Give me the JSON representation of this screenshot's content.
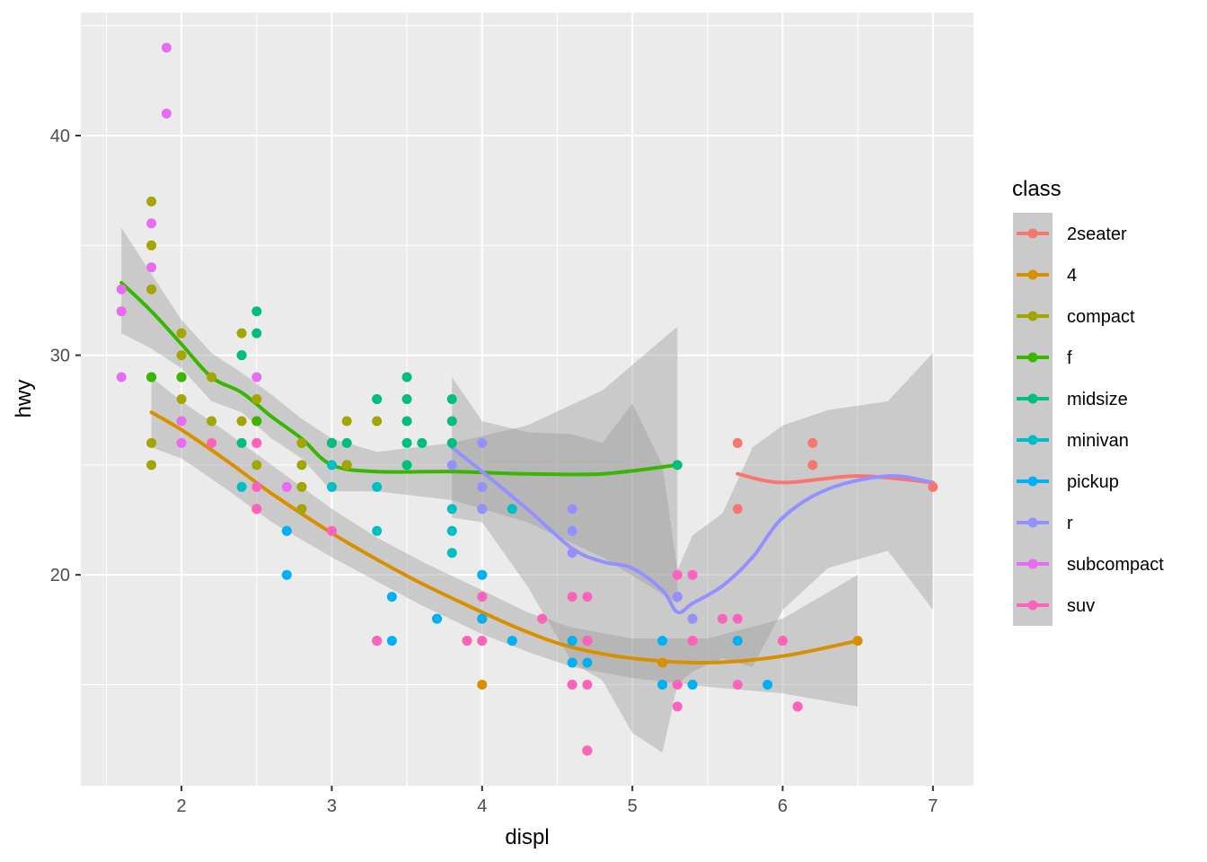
{
  "chart_data": {
    "type": "scatter",
    "xlabel": "displ",
    "ylabel": "hwy",
    "xlim": [
      1.33,
      7.27
    ],
    "ylim": [
      10.4,
      45.6
    ],
    "x_ticks": [
      2,
      3,
      4,
      5,
      6,
      7
    ],
    "y_ticks": [
      20,
      30,
      40
    ],
    "grid": true,
    "legend": {
      "title": "class",
      "placement": "right"
    },
    "smooth": {
      "method": "loess",
      "confidence_band": true,
      "band_color": "#999999"
    },
    "series": [
      {
        "name": "2seater",
        "color": "#F8766D",
        "points": [
          [
            5.7,
            26
          ],
          [
            5.7,
            23
          ],
          [
            6.2,
            26
          ],
          [
            6.2,
            25
          ],
          [
            7.0,
            24
          ]
        ],
        "smooth": [
          [
            5.7,
            24.6
          ],
          [
            6.0,
            24.2
          ],
          [
            6.5,
            24.5
          ],
          [
            7.0,
            24.2
          ]
        ],
        "band_upper": [],
        "band_lower": []
      },
      {
        "name": "4",
        "color": "#D89000",
        "points": [
          [
            4.0,
            18
          ],
          [
            5.2,
            16
          ],
          [
            4.7,
            17
          ],
          [
            5.2,
            15
          ],
          [
            4.7,
            12
          ],
          [
            4.7,
            16
          ],
          [
            4.7,
            17
          ],
          [
            5.3,
            15
          ],
          [
            4.6,
            17
          ],
          [
            5.4,
            17
          ],
          [
            5.7,
            17
          ],
          [
            6.5,
            17
          ],
          [
            4.2,
            17
          ],
          [
            4.0,
            17
          ],
          [
            4.0,
            20
          ],
          [
            4.6,
            15
          ],
          [
            5.4,
            15
          ],
          [
            3.7,
            18
          ],
          [
            3.9,
            17
          ],
          [
            4.7,
            12
          ],
          [
            2.5,
            23
          ],
          [
            4.0,
            19
          ],
          [
            4.0,
            15
          ],
          [
            6.1,
            14
          ],
          [
            4.4,
            18
          ],
          [
            4.6,
            16
          ],
          [
            6.0,
            17
          ],
          [
            5.3,
            19
          ],
          [
            5.4,
            18
          ],
          [
            3.3,
            17
          ]
        ],
        "smooth": [
          [
            1.8,
            27.4
          ],
          [
            2.0,
            26.6
          ],
          [
            2.3,
            25.2
          ],
          [
            2.6,
            23.7
          ],
          [
            3.0,
            21.9
          ],
          [
            3.3,
            20.7
          ],
          [
            3.6,
            19.6
          ],
          [
            4.0,
            18.3
          ],
          [
            4.3,
            17.4
          ],
          [
            4.6,
            16.7
          ],
          [
            5.0,
            16.2
          ],
          [
            5.5,
            16.0
          ],
          [
            6.0,
            16.3
          ],
          [
            6.5,
            17.0
          ]
        ],
        "band_upper": [
          [
            1.8,
            29.0
          ],
          [
            2.0,
            27.9
          ],
          [
            2.3,
            26.5
          ],
          [
            2.6,
            25.0
          ],
          [
            3.0,
            23.0
          ],
          [
            3.3,
            21.7
          ],
          [
            3.6,
            20.6
          ],
          [
            4.0,
            19.3
          ],
          [
            4.3,
            18.3
          ],
          [
            4.6,
            17.6
          ],
          [
            5.0,
            17.1
          ],
          [
            5.5,
            17.1
          ],
          [
            6.0,
            18.0
          ],
          [
            6.5,
            20.0
          ]
        ],
        "band_lower": [
          [
            1.8,
            25.8
          ],
          [
            2.0,
            25.3
          ],
          [
            2.3,
            23.9
          ],
          [
            2.6,
            22.4
          ],
          [
            3.0,
            20.8
          ],
          [
            3.3,
            19.7
          ],
          [
            3.6,
            18.6
          ],
          [
            4.0,
            17.3
          ],
          [
            4.3,
            16.5
          ],
          [
            4.6,
            15.8
          ],
          [
            5.0,
            15.3
          ],
          [
            5.5,
            14.9
          ],
          [
            6.0,
            14.6
          ],
          [
            6.5,
            14.0
          ]
        ]
      },
      {
        "name": "compact",
        "color": "#A3A500",
        "points": [
          [
            1.8,
            29
          ],
          [
            1.8,
            29
          ],
          [
            2.0,
            31
          ],
          [
            2.0,
            30
          ],
          [
            2.8,
            26
          ],
          [
            2.8,
            26
          ],
          [
            3.1,
            27
          ],
          [
            1.8,
            26
          ],
          [
            1.8,
            25
          ],
          [
            2.0,
            28
          ],
          [
            2.0,
            29
          ],
          [
            2.8,
            24
          ],
          [
            2.8,
            25
          ],
          [
            3.1,
            25
          ],
          [
            3.1,
            25
          ],
          [
            2.2,
            27
          ],
          [
            2.4,
            31
          ],
          [
            2.5,
            27
          ],
          [
            2.5,
            28
          ],
          [
            3.0,
            26
          ],
          [
            1.8,
            37
          ],
          [
            1.8,
            35
          ],
          [
            1.8,
            33
          ],
          [
            2.0,
            29
          ],
          [
            2.2,
            29
          ],
          [
            2.4,
            27
          ],
          [
            2.5,
            25
          ],
          [
            2.8,
            23
          ],
          [
            3.0,
            26
          ],
          [
            3.3,
            27
          ],
          [
            3.3,
            28
          ]
        ],
        "smooth": [],
        "band_upper": [],
        "band_lower": []
      },
      {
        "name": "f",
        "color": "#39B600",
        "points": [
          [
            1.8,
            29
          ],
          [
            2.0,
            29
          ],
          [
            2.5,
            27
          ]
        ],
        "smooth": [
          [
            1.6,
            33.3
          ],
          [
            1.8,
            32.0
          ],
          [
            2.0,
            30.5
          ],
          [
            2.2,
            29.0
          ],
          [
            2.4,
            28.3
          ],
          [
            2.6,
            27.2
          ],
          [
            2.8,
            26.2
          ],
          [
            3.0,
            25.0
          ],
          [
            3.3,
            24.7
          ],
          [
            3.8,
            24.7
          ],
          [
            4.3,
            24.6
          ],
          [
            4.8,
            24.6
          ],
          [
            5.3,
            25.0
          ]
        ],
        "band_upper": [
          [
            1.6,
            35.8
          ],
          [
            1.8,
            33.7
          ],
          [
            2.0,
            31.6
          ],
          [
            2.2,
            30.1
          ],
          [
            2.4,
            29.2
          ],
          [
            2.6,
            28.2
          ],
          [
            2.8,
            27.1
          ],
          [
            3.0,
            26.2
          ],
          [
            3.3,
            25.6
          ],
          [
            3.8,
            26.0
          ],
          [
            4.3,
            26.8
          ],
          [
            4.8,
            28.4
          ],
          [
            5.3,
            31.3
          ]
        ],
        "band_lower": [
          [
            1.6,
            31.0
          ],
          [
            1.8,
            30.3
          ],
          [
            2.0,
            29.4
          ],
          [
            2.2,
            27.9
          ],
          [
            2.4,
            27.4
          ],
          [
            2.6,
            26.2
          ],
          [
            2.8,
            25.3
          ],
          [
            3.0,
            23.8
          ],
          [
            3.3,
            23.8
          ],
          [
            3.8,
            23.4
          ],
          [
            4.3,
            22.4
          ],
          [
            4.8,
            20.8
          ],
          [
            5.3,
            18.7
          ]
        ]
      },
      {
        "name": "midsize",
        "color": "#00BF7D",
        "points": [
          [
            2.4,
            30
          ],
          [
            2.4,
            30
          ],
          [
            2.4,
            26
          ],
          [
            2.5,
            32
          ],
          [
            2.5,
            31
          ],
          [
            3.5,
            29
          ],
          [
            3.5,
            28
          ],
          [
            3.5,
            27
          ],
          [
            3.5,
            26
          ],
          [
            3.3,
            28
          ],
          [
            3.8,
            28
          ],
          [
            3.8,
            27
          ],
          [
            3.8,
            26
          ],
          [
            3.6,
            26
          ],
          [
            3.5,
            25
          ],
          [
            3.1,
            26
          ],
          [
            3.0,
            26
          ],
          [
            5.3,
            25
          ]
        ],
        "smooth": [],
        "band_upper": [],
        "band_lower": []
      },
      {
        "name": "minivan",
        "color": "#00BFC4",
        "points": [
          [
            2.4,
            24
          ],
          [
            3.0,
            24
          ],
          [
            3.3,
            22
          ],
          [
            3.3,
            24
          ],
          [
            3.8,
            23
          ],
          [
            3.8,
            22
          ],
          [
            3.8,
            21
          ],
          [
            4.0,
            23
          ],
          [
            3.0,
            25
          ],
          [
            4.2,
            23
          ],
          [
            3.3,
            17
          ]
        ],
        "smooth": [],
        "band_upper": [],
        "band_lower": []
      },
      {
        "name": "pickup",
        "color": "#00B0F6",
        "points": [
          [
            2.7,
            20
          ],
          [
            2.7,
            22
          ],
          [
            3.4,
            17
          ],
          [
            3.4,
            19
          ],
          [
            4.0,
            20
          ],
          [
            4.0,
            18
          ],
          [
            4.7,
            17
          ],
          [
            4.7,
            16
          ],
          [
            5.2,
            17
          ],
          [
            5.7,
            17
          ],
          [
            5.9,
            15
          ],
          [
            4.6,
            16
          ],
          [
            5.4,
            15
          ],
          [
            3.7,
            18
          ],
          [
            4.2,
            17
          ],
          [
            5.2,
            15
          ],
          [
            4.6,
            17
          ]
        ],
        "smooth": [],
        "band_upper": [],
        "band_lower": []
      },
      {
        "name": "r",
        "color": "#9590FF",
        "points": [
          [
            3.8,
            25
          ],
          [
            4.0,
            24
          ],
          [
            4.0,
            26
          ],
          [
            4.6,
            23
          ],
          [
            4.6,
            22
          ],
          [
            4.6,
            21
          ],
          [
            5.4,
            20
          ],
          [
            5.3,
            19
          ],
          [
            5.4,
            18
          ],
          [
            4.0,
            23
          ]
        ],
        "smooth": [
          [
            3.8,
            25.8
          ],
          [
            4.0,
            24.7
          ],
          [
            4.3,
            23.0
          ],
          [
            4.6,
            21.2
          ],
          [
            4.8,
            20.6
          ],
          [
            5.0,
            20.3
          ],
          [
            5.2,
            19.3
          ],
          [
            5.3,
            18.3
          ],
          [
            5.4,
            18.7
          ],
          [
            5.6,
            19.5
          ],
          [
            5.8,
            20.8
          ],
          [
            6.0,
            22.6
          ],
          [
            6.3,
            23.9
          ],
          [
            6.7,
            24.5
          ],
          [
            7.0,
            24.2
          ]
        ],
        "band_upper": [
          [
            3.8,
            29.0
          ],
          [
            4.0,
            27.0
          ],
          [
            4.3,
            26.5
          ],
          [
            4.6,
            26.4
          ],
          [
            4.8,
            26.0
          ],
          [
            5.0,
            27.8
          ],
          [
            5.2,
            25.0
          ],
          [
            5.3,
            20.2
          ],
          [
            5.4,
            21.8
          ],
          [
            5.6,
            22.8
          ],
          [
            5.8,
            25.8
          ],
          [
            6.0,
            26.8
          ],
          [
            6.3,
            27.5
          ],
          [
            6.7,
            27.9
          ],
          [
            7.0,
            30.1
          ]
        ],
        "band_lower": [
          [
            3.8,
            22.6
          ],
          [
            4.0,
            22.4
          ],
          [
            4.3,
            19.5
          ],
          [
            4.6,
            16.0
          ],
          [
            4.8,
            15.2
          ],
          [
            5.0,
            12.8
          ],
          [
            5.2,
            11.9
          ],
          [
            5.3,
            15.0
          ],
          [
            5.4,
            15.6
          ],
          [
            5.6,
            16.2
          ],
          [
            5.8,
            15.8
          ],
          [
            6.0,
            18.4
          ],
          [
            6.3,
            20.3
          ],
          [
            6.7,
            21.1
          ],
          [
            7.0,
            18.4
          ]
        ]
      },
      {
        "name": "subcompact",
        "color": "#E76BF3",
        "points": [
          [
            1.6,
            33
          ],
          [
            1.6,
            32
          ],
          [
            1.6,
            29
          ],
          [
            1.8,
            34
          ],
          [
            1.8,
            36
          ],
          [
            1.9,
            44
          ],
          [
            1.9,
            41
          ],
          [
            2.0,
            26
          ],
          [
            2.0,
            27
          ],
          [
            2.5,
            29
          ],
          [
            2.5,
            26
          ],
          [
            2.7,
            24
          ]
        ],
        "smooth": [],
        "band_upper": [],
        "band_lower": []
      },
      {
        "name": "suv",
        "color": "#FF62BC",
        "points": [
          [
            2.5,
            24
          ],
          [
            2.5,
            23
          ],
          [
            2.5,
            26
          ],
          [
            2.2,
            26
          ],
          [
            3.0,
            22
          ],
          [
            3.3,
            17
          ],
          [
            3.9,
            17
          ],
          [
            4.0,
            19
          ],
          [
            4.0,
            17
          ],
          [
            4.7,
            17
          ],
          [
            4.7,
            15
          ],
          [
            4.6,
            19
          ],
          [
            4.6,
            15
          ],
          [
            4.7,
            19
          ],
          [
            5.3,
            14
          ],
          [
            5.3,
            15
          ],
          [
            5.4,
            17
          ],
          [
            5.7,
            18
          ],
          [
            5.7,
            15
          ],
          [
            6.1,
            14
          ],
          [
            5.6,
            18
          ],
          [
            4.4,
            18
          ],
          [
            5.3,
            20
          ],
          [
            6.0,
            17
          ],
          [
            5.4,
            20
          ],
          [
            4.7,
            12
          ]
        ],
        "smooth": [],
        "band_upper": [],
        "band_lower": []
      }
    ]
  }
}
